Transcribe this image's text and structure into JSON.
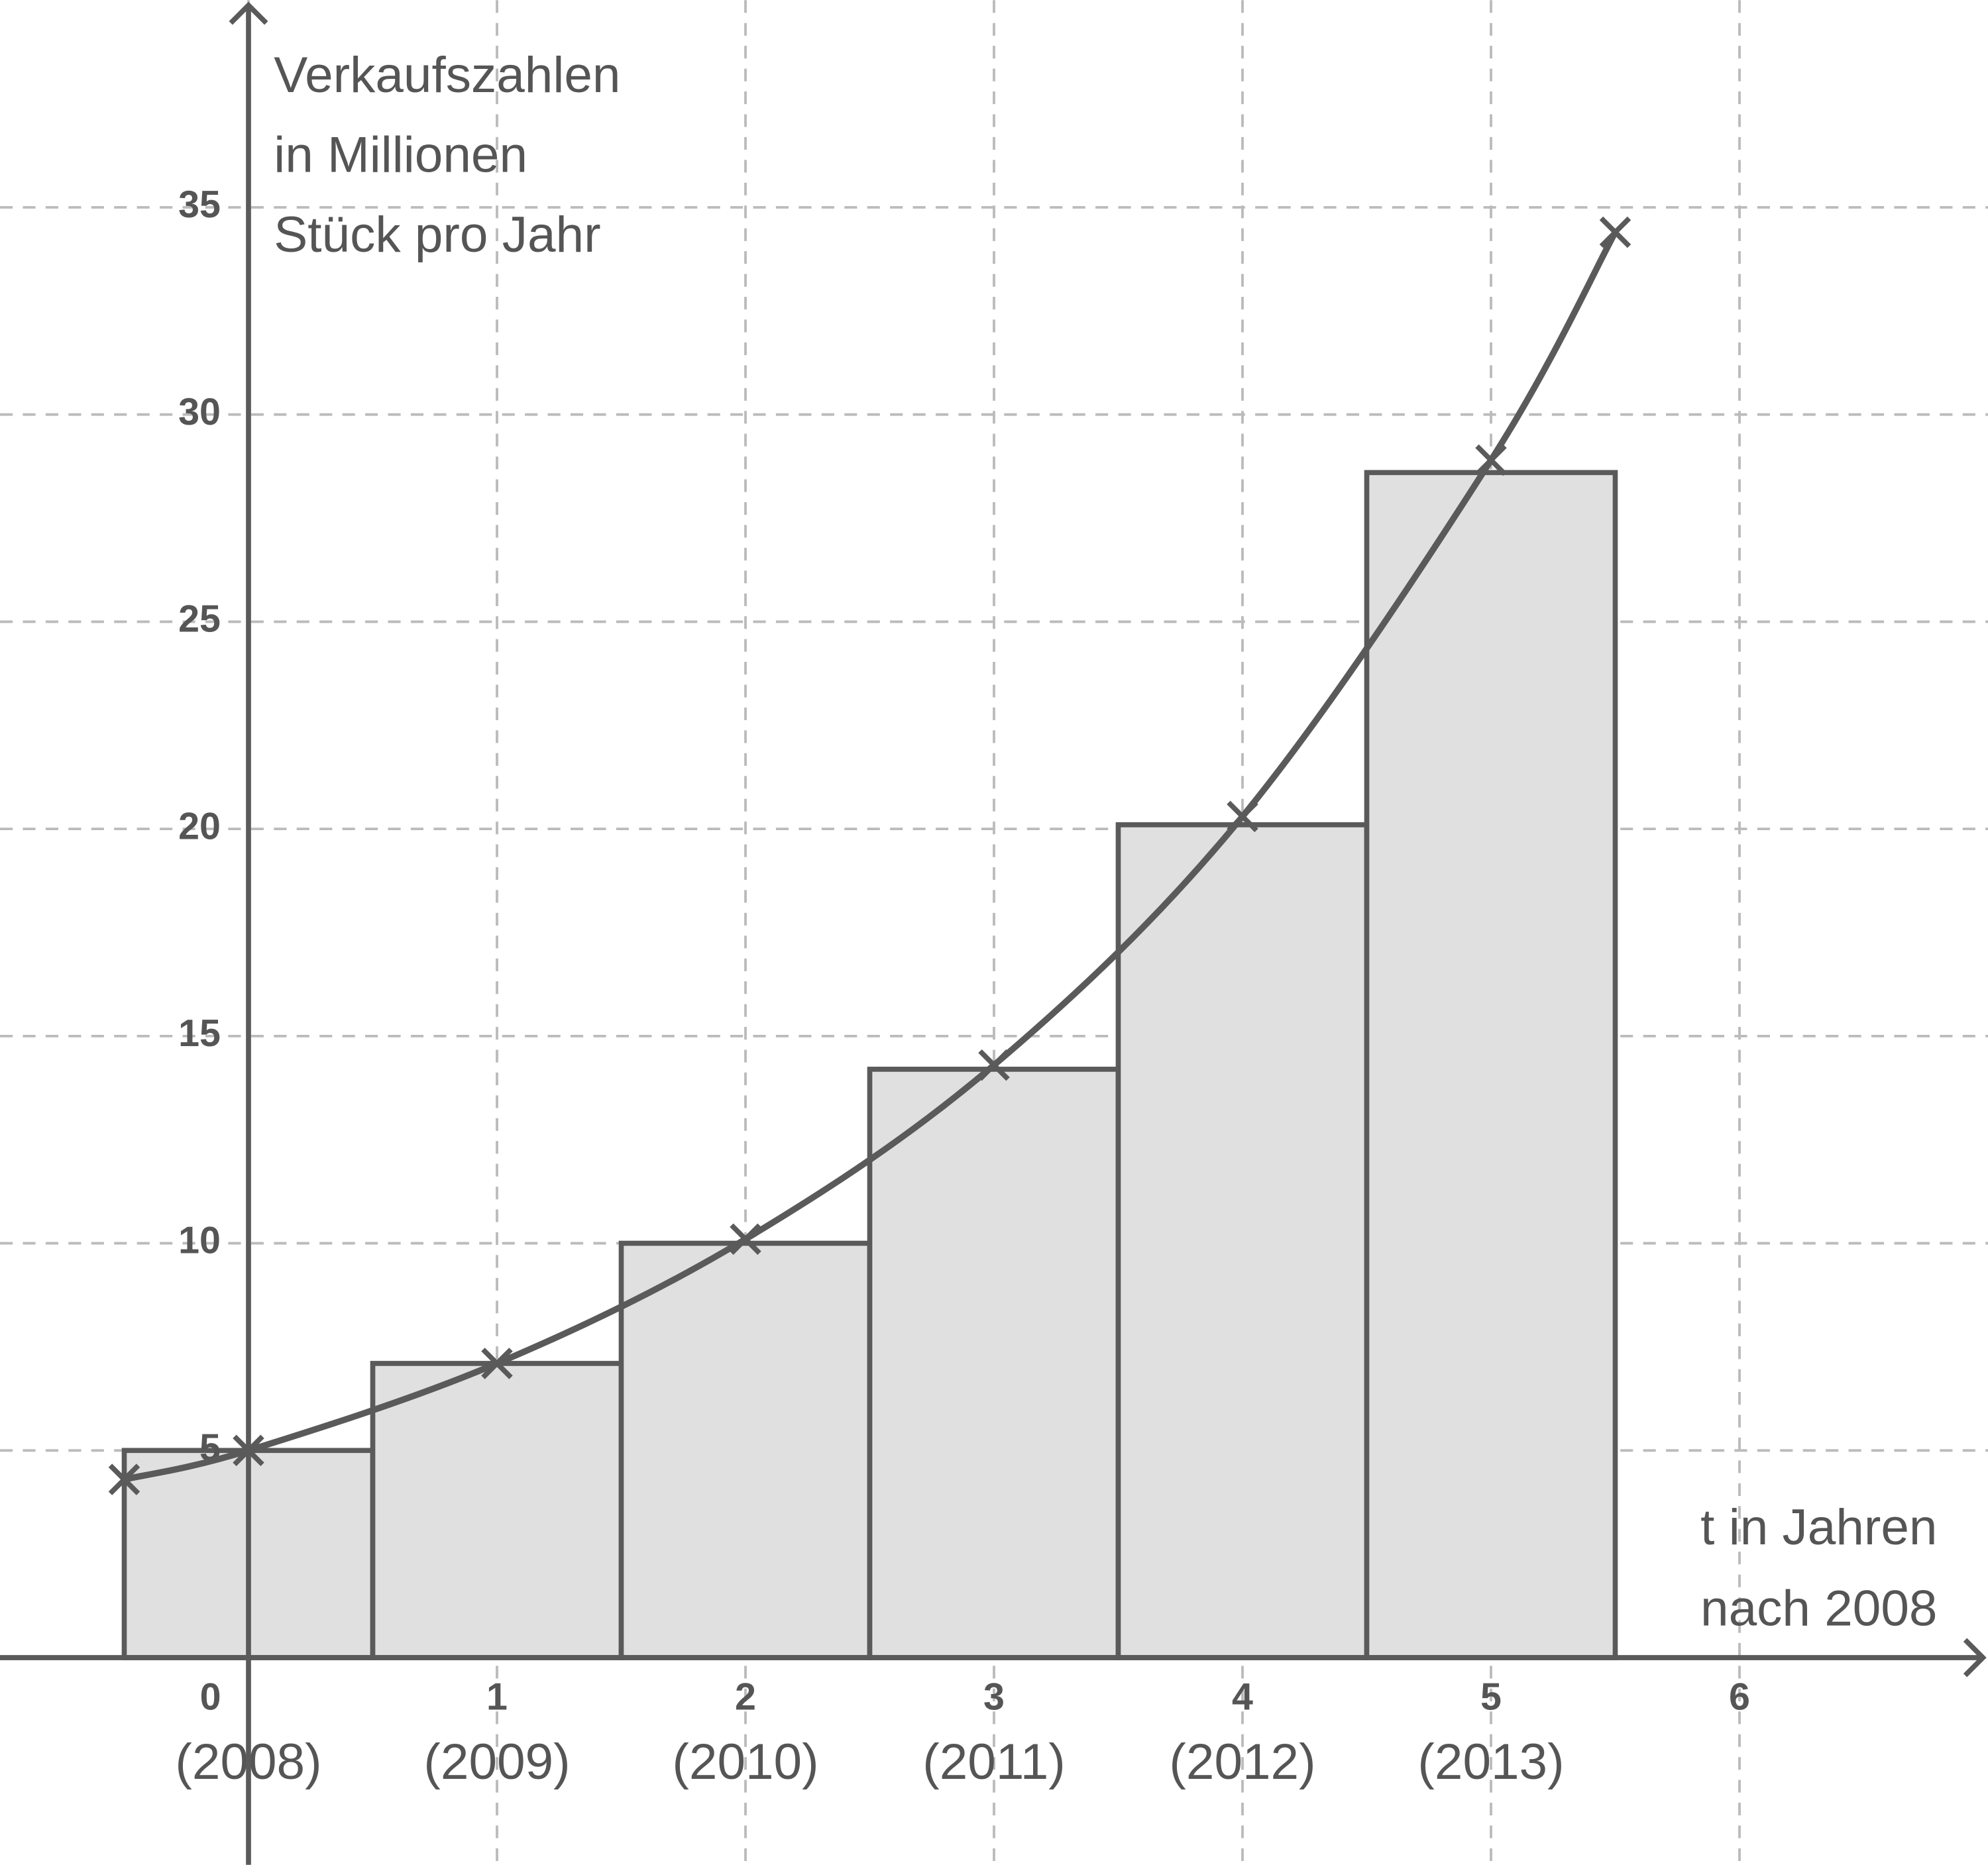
{
  "chart_data": {
    "type": "bar",
    "y_label": [
      "Verkaufszahlen",
      "in Millionen",
      "Stück pro Jahr"
    ],
    "x_label": [
      "t in Jahren",
      "nach 2008"
    ],
    "x": [
      0,
      1,
      2,
      3,
      4,
      5
    ],
    "year_labels": [
      "(2008)",
      "(2009)",
      "(2010)",
      "(2011)",
      "(2012)",
      "(2013)"
    ],
    "values": [
      5,
      7.1,
      10,
      14.2,
      20.1,
      28.6
    ],
    "color": "#e0e0e0",
    "edge_color": "#5a5a5a",
    "curve": {
      "type": "line",
      "x": [
        -0.5,
        0,
        1,
        2,
        3,
        4,
        5,
        5.5
      ],
      "values": [
        4.3,
        5,
        7.1,
        10.1,
        14.3,
        20.3,
        28.9,
        34.4
      ],
      "color": "#5a5a5a"
    },
    "xlim": [
      -1,
      7
    ],
    "ylim": [
      -5,
      40
    ],
    "xticks": [
      0,
      1,
      2,
      3,
      4,
      5,
      6
    ],
    "yticks": [
      5,
      10,
      15,
      20,
      25,
      30,
      35
    ],
    "grid": true
  }
}
